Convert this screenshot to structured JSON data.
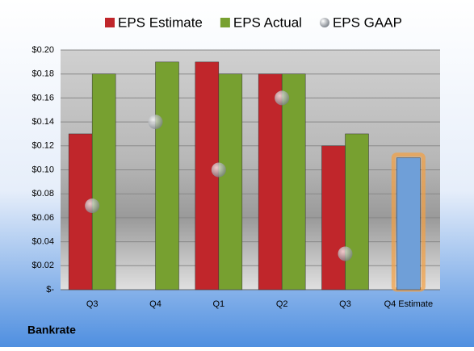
{
  "chart_data": {
    "type": "bar",
    "footer": "Bankrate",
    "categories": [
      "Q3",
      "Q4",
      "Q1",
      "Q2",
      "Q3",
      "Q4 Estimate"
    ],
    "series": [
      {
        "name": "EPS Estimate",
        "color": "#c0262b",
        "values": [
          0.13,
          null,
          0.19,
          0.18,
          0.12,
          null
        ]
      },
      {
        "name": "EPS Actual",
        "color": "#77a030",
        "values": [
          0.18,
          0.19,
          0.18,
          0.18,
          0.13,
          null
        ]
      },
      {
        "name": "EPS GAAP",
        "type": "scatter",
        "color": "#a0a8b0",
        "values": [
          0.07,
          0.14,
          0.1,
          0.16,
          0.03,
          null
        ]
      },
      {
        "color": "#6f9fd8",
        "centered": true,
        "glow": "#f5a040",
        "values": [
          null,
          null,
          null,
          null,
          null,
          0.11
        ]
      }
    ],
    "ylim": [
      0,
      0.2
    ],
    "yticks": [
      {
        "value": 0,
        "label": "$-"
      },
      {
        "value": 0.02,
        "label": "$0.02"
      },
      {
        "value": 0.04,
        "label": "$0.04"
      },
      {
        "value": 0.06,
        "label": "$0.06"
      },
      {
        "value": 0.08,
        "label": "$0.08"
      },
      {
        "value": 0.1,
        "label": "$0.10"
      },
      {
        "value": 0.12,
        "label": "$0.12"
      },
      {
        "value": 0.14,
        "label": "$0.14"
      },
      {
        "value": 0.16,
        "label": "$0.16"
      },
      {
        "value": 0.18,
        "label": "$0.18"
      },
      {
        "value": 0.2,
        "label": "$0.20"
      }
    ],
    "grid": true
  }
}
